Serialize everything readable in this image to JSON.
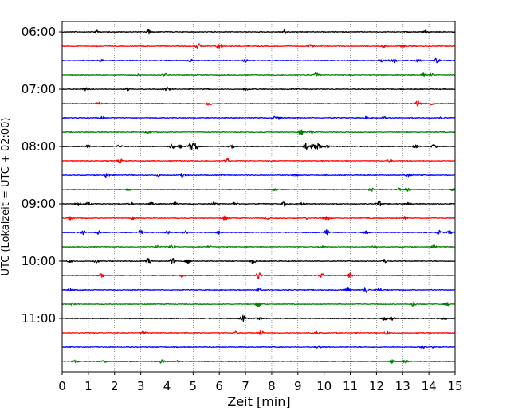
{
  "chart_data": {
    "type": "line",
    "title": "",
    "xlabel": "Zeit  [min]",
    "ylabel": "UTC (Lokalzeit = UTC + 02:00)",
    "xlim": [
      0,
      15
    ],
    "x_ticks": [
      0,
      1,
      2,
      3,
      4,
      5,
      6,
      7,
      8,
      9,
      10,
      11,
      12,
      13,
      14,
      15
    ],
    "x_tick_labels": [
      "0",
      "1",
      "2",
      "3",
      "4",
      "5",
      "6",
      "7",
      "8",
      "9",
      "10",
      "11",
      "12",
      "13",
      "14",
      "15"
    ],
    "y_tick_labels": [
      "06:00",
      "07:00",
      "08:00",
      "09:00",
      "10:00",
      "11:00"
    ],
    "y_ticks_trace_index": [
      0,
      4,
      8,
      12,
      16,
      20
    ],
    "grid": "vertical-dotted",
    "trace_interval_minutes": 15,
    "trace_start_times": [
      "06:00",
      "06:15",
      "06:30",
      "06:45",
      "07:00",
      "07:15",
      "07:30",
      "07:45",
      "08:00",
      "08:15",
      "08:30",
      "08:45",
      "09:00",
      "09:15",
      "09:30",
      "09:45",
      "10:00",
      "10:15",
      "10:30",
      "10:45",
      "11:00",
      "11:15",
      "11:30",
      "11:45"
    ],
    "trace_colors": [
      "#000000",
      "#ff0000",
      "#0000ff",
      "#008000"
    ],
    "traces": [
      {
        "start": "06:00",
        "bursts": [
          [
            1.3,
            0.5
          ],
          [
            3.3,
            0.6
          ],
          [
            8.5,
            0.6
          ],
          [
            13.9,
            0.4
          ]
        ]
      },
      {
        "start": "06:15",
        "bursts": [
          [
            5.2,
            0.7
          ],
          [
            6.0,
            0.8
          ],
          [
            9.5,
            0.5
          ],
          [
            12.3,
            0.3
          ],
          [
            13.0,
            0.3
          ]
        ]
      },
      {
        "start": "06:30",
        "bursts": [
          [
            1.5,
            0.4
          ],
          [
            4.9,
            0.4
          ],
          [
            7.0,
            0.4
          ],
          [
            12.2,
            0.4
          ],
          [
            12.5,
            0.4
          ],
          [
            12.7,
            0.5
          ],
          [
            13.6,
            0.4
          ],
          [
            14.3,
            0.8
          ]
        ]
      },
      {
        "start": "06:45",
        "bursts": [
          [
            2.9,
            0.3
          ],
          [
            3.9,
            0.5
          ],
          [
            9.7,
            0.6
          ],
          [
            13.8,
            0.5
          ],
          [
            14.1,
            0.5
          ]
        ]
      },
      {
        "start": "07:00",
        "bursts": [
          [
            0.9,
            0.4
          ],
          [
            2.5,
            0.5
          ],
          [
            4.0,
            0.6
          ],
          [
            7.0,
            0.3
          ]
        ]
      },
      {
        "start": "07:15",
        "bursts": [
          [
            1.4,
            0.3
          ],
          [
            5.6,
            0.7
          ],
          [
            13.6,
            1.0
          ],
          [
            14.1,
            0.4
          ]
        ]
      },
      {
        "start": "07:30",
        "bursts": [
          [
            1.5,
            0.3
          ],
          [
            8.1,
            0.3
          ],
          [
            8.3,
            0.4
          ],
          [
            11.6,
            0.3
          ],
          [
            12.3,
            0.3
          ],
          [
            14.5,
            0.3
          ]
        ]
      },
      {
        "start": "07:45",
        "bursts": [
          [
            3.3,
            0.3
          ],
          [
            9.1,
            0.8
          ],
          [
            9.5,
            0.5
          ]
        ]
      },
      {
        "start": "08:00",
        "bursts": [
          [
            1.0,
            0.5
          ],
          [
            2.2,
            0.5
          ],
          [
            4.2,
            0.8
          ],
          [
            4.5,
            0.5
          ],
          [
            4.9,
            1.3
          ],
          [
            5.0,
            0.9
          ],
          [
            5.1,
            0.7
          ],
          [
            6.5,
            0.5
          ],
          [
            9.3,
            1.0
          ],
          [
            9.6,
            1.3
          ],
          [
            9.8,
            0.8
          ],
          [
            10.1,
            0.4
          ],
          [
            13.5,
            0.5
          ],
          [
            14.2,
            0.6
          ]
        ]
      },
      {
        "start": "08:15",
        "bursts": [
          [
            2.2,
            0.6
          ],
          [
            6.3,
            0.7
          ],
          [
            12.5,
            0.4
          ]
        ]
      },
      {
        "start": "08:30",
        "bursts": [
          [
            1.7,
            0.8
          ],
          [
            3.7,
            0.3
          ],
          [
            4.6,
            0.6
          ],
          [
            8.9,
            0.4
          ],
          [
            13.2,
            0.4
          ]
        ]
      },
      {
        "start": "08:45",
        "bursts": [
          [
            2.5,
            0.5
          ],
          [
            8.1,
            0.3
          ],
          [
            11.8,
            0.4
          ],
          [
            12.9,
            0.5
          ],
          [
            13.2,
            0.5
          ],
          [
            14.9,
            0.3
          ]
        ]
      },
      {
        "start": "09:00",
        "bursts": [
          [
            0.6,
            0.5
          ],
          [
            1.0,
            0.4
          ],
          [
            2.6,
            0.4
          ],
          [
            3.4,
            0.4
          ],
          [
            4.3,
            0.4
          ],
          [
            5.8,
            0.4
          ],
          [
            6.6,
            0.4
          ],
          [
            8.5,
            0.7
          ],
          [
            9.2,
            0.5
          ],
          [
            12.1,
            0.8
          ],
          [
            13.2,
            0.4
          ]
        ]
      },
      {
        "start": "09:15",
        "bursts": [
          [
            0.3,
            0.4
          ],
          [
            2.7,
            0.4
          ],
          [
            6.2,
            0.6
          ],
          [
            7.8,
            0.3
          ],
          [
            9.3,
            0.3
          ],
          [
            10.1,
            0.8
          ],
          [
            13.1,
            0.5
          ]
        ]
      },
      {
        "start": "09:30",
        "bursts": [
          [
            0.8,
            0.5
          ],
          [
            1.4,
            0.6
          ],
          [
            3.0,
            0.5
          ],
          [
            4.0,
            0.5
          ],
          [
            4.7,
            0.5
          ],
          [
            6.0,
            0.4
          ],
          [
            10.1,
            0.7
          ],
          [
            11.6,
            0.4
          ],
          [
            14.4,
            0.5
          ],
          [
            14.8,
            0.5
          ]
        ]
      },
      {
        "start": "09:45",
        "bursts": [
          [
            3.6,
            0.4
          ],
          [
            4.2,
            0.6
          ],
          [
            5.6,
            0.3
          ],
          [
            9.9,
            0.4
          ],
          [
            11.9,
            0.4
          ],
          [
            14.2,
            0.4
          ]
        ]
      },
      {
        "start": "10:00",
        "bursts": [
          [
            0.3,
            0.3
          ],
          [
            1.3,
            0.4
          ],
          [
            3.3,
            0.7
          ],
          [
            4.2,
            0.8
          ],
          [
            4.8,
            0.8
          ],
          [
            7.3,
            0.6
          ],
          [
            12.3,
            0.5
          ]
        ]
      },
      {
        "start": "10:15",
        "bursts": [
          [
            1.5,
            0.5
          ],
          [
            4.6,
            0.5
          ],
          [
            7.5,
            1.1
          ],
          [
            9.9,
            0.6
          ],
          [
            11.0,
            0.7
          ]
        ]
      },
      {
        "start": "10:30",
        "bursts": [
          [
            0.3,
            0.3
          ],
          [
            7.5,
            0.4
          ],
          [
            10.9,
            0.6
          ],
          [
            11.6,
            0.8
          ],
          [
            12.1,
            0.5
          ]
        ]
      },
      {
        "start": "10:45",
        "bursts": [
          [
            0.4,
            0.3
          ],
          [
            7.5,
            0.8
          ],
          [
            13.4,
            0.6
          ],
          [
            14.7,
            0.4
          ]
        ]
      },
      {
        "start": "11:00",
        "bursts": [
          [
            6.9,
            0.8
          ],
          [
            7.5,
            0.4
          ],
          [
            12.3,
            0.5
          ],
          [
            12.6,
            0.4
          ],
          [
            14.6,
            0.4
          ]
        ]
      },
      {
        "start": "11:15",
        "bursts": [
          [
            3.1,
            0.4
          ],
          [
            6.6,
            0.4
          ],
          [
            7.6,
            0.6
          ],
          [
            9.7,
            0.4
          ],
          [
            12.4,
            0.5
          ]
        ]
      },
      {
        "start": "11:30",
        "bursts": [
          [
            9.8,
            0.4
          ],
          [
            13.8,
            0.6
          ],
          [
            14.2,
            0.4
          ]
        ]
      },
      {
        "start": "11:45",
        "bursts": [
          [
            0.5,
            0.4
          ],
          [
            1.6,
            0.3
          ],
          [
            3.8,
            0.6
          ],
          [
            4.4,
            0.3
          ],
          [
            12.6,
            0.4
          ],
          [
            13.1,
            0.5
          ]
        ]
      }
    ]
  }
}
